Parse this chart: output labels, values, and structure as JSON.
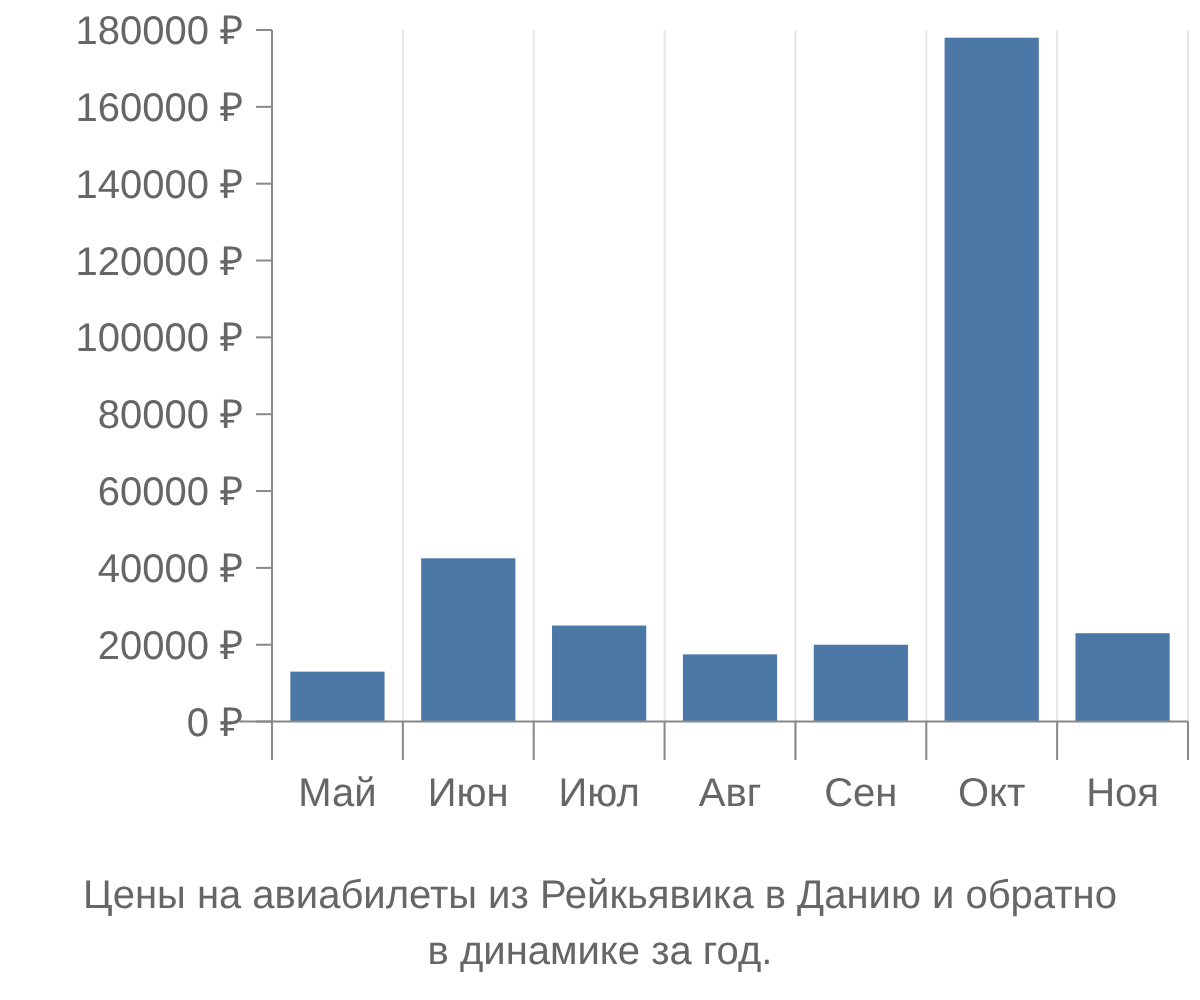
{
  "chart_data": {
    "type": "bar",
    "categories": [
      "Май",
      "Июн",
      "Июл",
      "Авг",
      "Сен",
      "Окт",
      "Ноя"
    ],
    "values": [
      13000,
      42500,
      25000,
      17500,
      20000,
      178000,
      23000
    ],
    "color": "#4c78a8",
    "ylim": [
      -10000,
      180000
    ],
    "yticks": [
      {
        "value": 0,
        "label": "0 ₽"
      },
      {
        "value": 20000,
        "label": "20000 ₽"
      },
      {
        "value": 40000,
        "label": "40000 ₽"
      },
      {
        "value": 60000,
        "label": "60000 ₽"
      },
      {
        "value": 80000,
        "label": "80000 ₽"
      },
      {
        "value": 100000,
        "label": "100000 ₽"
      },
      {
        "value": 120000,
        "label": "120000 ₽"
      },
      {
        "value": 140000,
        "label": "140000 ₽"
      },
      {
        "value": 160000,
        "label": "160000 ₽"
      },
      {
        "value": 180000,
        "label": "180000 ₽"
      }
    ],
    "grid": "x",
    "annotations": [
      "Цены на авиабилеты из Рейкьявика в Данию и обратно",
      "в динамике за год."
    ]
  }
}
